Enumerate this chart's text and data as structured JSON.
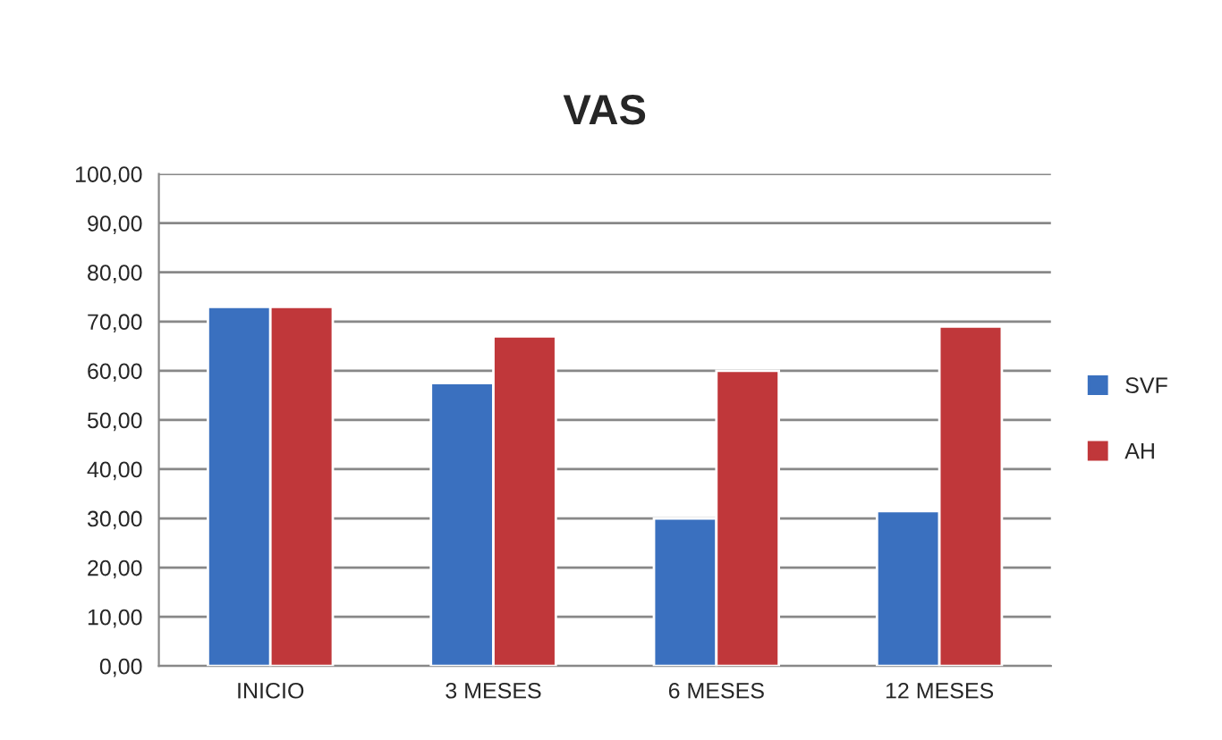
{
  "chart_data": {
    "type": "bar",
    "title": "VAS",
    "categories": [
      "INICIO",
      "3 MESES",
      "6 MESES",
      "12 MESES"
    ],
    "series": [
      {
        "name": "SVF",
        "color": "#3a70bf",
        "values": [
          73,
          57.5,
          30,
          31.5
        ]
      },
      {
        "name": "AH",
        "color": "#c0373a",
        "values": [
          73,
          67,
          60,
          69
        ]
      }
    ],
    "ylim": [
      0,
      100
    ],
    "yticks": [
      {
        "value": 0,
        "label": "0,00"
      },
      {
        "value": 10,
        "label": "10,00"
      },
      {
        "value": 20,
        "label": "20,00"
      },
      {
        "value": 30,
        "label": "30,00"
      },
      {
        "value": 40,
        "label": "40,00"
      },
      {
        "value": 50,
        "label": "50,00"
      },
      {
        "value": 60,
        "label": "60,00"
      },
      {
        "value": 70,
        "label": "70,00"
      },
      {
        "value": 80,
        "label": "80,00"
      },
      {
        "value": 90,
        "label": "90,00"
      },
      {
        "value": 100,
        "label": "100,00"
      }
    ],
    "grid": "y",
    "legend": "right"
  }
}
